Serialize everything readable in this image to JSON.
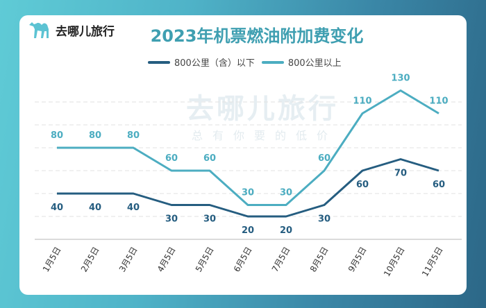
{
  "brand": {
    "name": "去哪儿旅行",
    "watermark_main": "去哪儿旅行",
    "watermark_sub": "总有你要的低价"
  },
  "colors": {
    "series_low": "#255d80",
    "series_high": "#4cadc1",
    "title": "#3f9fb1"
  },
  "chart_data": {
    "type": "line",
    "title": "2023年机票燃油附加费变化",
    "categories": [
      "1月5日",
      "2月5日",
      "3月5日",
      "4月5日",
      "5月5日",
      "6月5日",
      "7月5日",
      "8月5日",
      "9月5日",
      "10月5日",
      "11月5日"
    ],
    "series": [
      {
        "name": "800公里（含）以下",
        "values": [
          40,
          40,
          40,
          30,
          30,
          20,
          20,
          30,
          60,
          70,
          60
        ]
      },
      {
        "name": "800公里以上",
        "values": [
          80,
          80,
          80,
          60,
          60,
          30,
          30,
          60,
          110,
          130,
          110
        ]
      }
    ],
    "ylim": [
      0,
      140
    ],
    "grid": true,
    "legend": "top",
    "data_labels": true
  }
}
